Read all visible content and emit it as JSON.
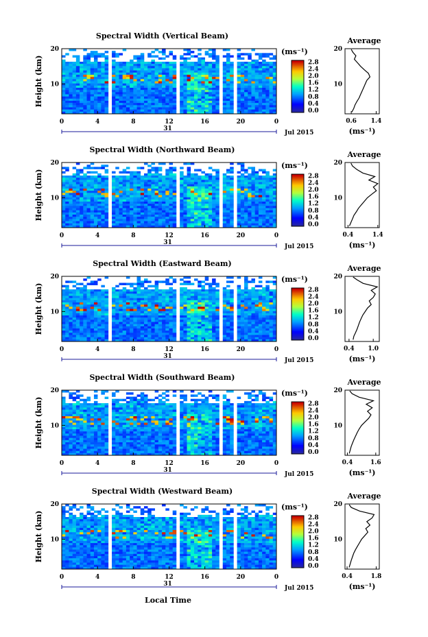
{
  "figure": {
    "date_label": "Jul 2015",
    "day_label": "31",
    "xlabel": "Local Time",
    "ylabel": "Height (km)",
    "unit_label": "(ms⁻¹)",
    "avg_title": "Average",
    "avg_xlabel": "(ms⁻¹)"
  },
  "chart_data": [
    {
      "type": "heatmap",
      "title": "Spectral Width (Vertical Beam)",
      "xlabel": "Local Time",
      "ylabel": "Height (km)",
      "x_ticks": [
        "0",
        "4",
        "8",
        "12",
        "16",
        "20",
        "0"
      ],
      "xlim": [
        0,
        24
      ],
      "y_ticks": [
        "10",
        "20"
      ],
      "ylim": [
        1.5,
        20
      ],
      "colorbar": {
        "ticks": [
          "0.0",
          "0.4",
          "0.8",
          "1.2",
          "1.6",
          "2.0",
          "2.4",
          "2.8"
        ],
        "range": [
          0,
          2.8
        ]
      },
      "data_gaps_hours": [
        [
          5.3,
          5.6
        ],
        [
          12.9,
          13.2
        ],
        [
          17.8,
          18.1
        ],
        [
          19.4,
          19.7
        ]
      ],
      "average_profile": {
        "xlim": [
          0.4,
          1.5
        ],
        "x_ticks": [
          "0.6",
          "1.4"
        ],
        "x_tick_values": [
          0.6,
          1.4
        ],
        "points": [
          [
            0.62,
            2
          ],
          [
            0.68,
            3
          ],
          [
            0.72,
            4
          ],
          [
            0.78,
            5
          ],
          [
            0.85,
            6
          ],
          [
            0.9,
            7
          ],
          [
            0.95,
            8
          ],
          [
            1.0,
            9
          ],
          [
            1.05,
            10
          ],
          [
            1.1,
            11
          ],
          [
            1.2,
            12
          ],
          [
            1.15,
            13
          ],
          [
            1.02,
            14
          ],
          [
            0.9,
            15
          ],
          [
            0.8,
            16
          ],
          [
            0.7,
            17
          ],
          [
            0.75,
            18
          ],
          [
            0.65,
            19
          ],
          [
            0.6,
            19.8
          ]
        ]
      }
    },
    {
      "type": "heatmap",
      "title": "Spectral Width (Northward Beam)",
      "xlabel": "Local Time",
      "ylabel": "Height (km)",
      "x_ticks": [
        "0",
        "4",
        "8",
        "12",
        "16",
        "20",
        "0"
      ],
      "xlim": [
        0,
        24
      ],
      "y_ticks": [
        "10",
        "20"
      ],
      "ylim": [
        1.5,
        20
      ],
      "colorbar": {
        "ticks": [
          "0.0",
          "0.4",
          "0.8",
          "1.2",
          "1.6",
          "2.0",
          "2.4",
          "2.8"
        ],
        "range": [
          0,
          2.8
        ]
      },
      "data_gaps_hours": [
        [
          5.3,
          5.6
        ],
        [
          12.9,
          13.2
        ],
        [
          17.8,
          18.1
        ],
        [
          19.4,
          19.7
        ]
      ],
      "average_profile": {
        "xlim": [
          0.3,
          1.45
        ],
        "x_ticks": [
          "0.4",
          "1.4"
        ],
        "x_tick_values": [
          0.4,
          1.4
        ],
        "points": [
          [
            0.45,
            2
          ],
          [
            0.5,
            3
          ],
          [
            0.55,
            4
          ],
          [
            0.6,
            5
          ],
          [
            0.68,
            6
          ],
          [
            0.75,
            7
          ],
          [
            0.85,
            8
          ],
          [
            0.95,
            9
          ],
          [
            1.05,
            10
          ],
          [
            1.2,
            11
          ],
          [
            1.35,
            12
          ],
          [
            1.25,
            13
          ],
          [
            1.4,
            14
          ],
          [
            1.1,
            15
          ],
          [
            1.3,
            16
          ],
          [
            0.9,
            17
          ],
          [
            0.7,
            18
          ],
          [
            0.55,
            19
          ],
          [
            0.5,
            19.8
          ]
        ]
      }
    },
    {
      "type": "heatmap",
      "title": "Spectral Width (Eastward Beam)",
      "xlabel": "Local Time",
      "ylabel": "Height (km)",
      "x_ticks": [
        "0",
        "4",
        "8",
        "12",
        "16",
        "20",
        "0"
      ],
      "xlim": [
        0,
        24
      ],
      "y_ticks": [
        "10",
        "20"
      ],
      "ylim": [
        1.5,
        20
      ],
      "colorbar": {
        "ticks": [
          "0.0",
          "0.4",
          "0.8",
          "1.2",
          "1.6",
          "2.0",
          "2.4",
          "2.8"
        ],
        "range": [
          0,
          2.8
        ]
      },
      "data_gaps_hours": [
        [
          5.3,
          5.6
        ],
        [
          12.9,
          13.2
        ],
        [
          17.8,
          18.1
        ],
        [
          19.4,
          19.7
        ]
      ],
      "average_profile": {
        "xlim": [
          0.3,
          1.15
        ],
        "x_ticks": [
          "0.4",
          "1.0"
        ],
        "x_tick_values": [
          0.4,
          1.0
        ],
        "points": [
          [
            0.5,
            2
          ],
          [
            0.52,
            3
          ],
          [
            0.56,
            4
          ],
          [
            0.6,
            5
          ],
          [
            0.63,
            6
          ],
          [
            0.66,
            7
          ],
          [
            0.7,
            8
          ],
          [
            0.74,
            9
          ],
          [
            0.8,
            10
          ],
          [
            0.86,
            11
          ],
          [
            0.95,
            12
          ],
          [
            0.9,
            13
          ],
          [
            1.0,
            14
          ],
          [
            1.05,
            15
          ],
          [
            0.95,
            16
          ],
          [
            1.1,
            17
          ],
          [
            0.75,
            18
          ],
          [
            0.6,
            19
          ],
          [
            0.5,
            19.8
          ]
        ]
      }
    },
    {
      "type": "heatmap",
      "title": "Spectral Width (Southward Beam)",
      "xlabel": "Local Time",
      "ylabel": "Height (km)",
      "x_ticks": [
        "0",
        "4",
        "8",
        "12",
        "16",
        "20",
        "0"
      ],
      "xlim": [
        0,
        24
      ],
      "y_ticks": [
        "10",
        "20"
      ],
      "ylim": [
        1.5,
        20
      ],
      "colorbar": {
        "ticks": [
          "0.0",
          "0.4",
          "0.8",
          "1.2",
          "1.6",
          "2.0",
          "2.4",
          "2.8"
        ],
        "range": [
          0,
          2.8
        ]
      },
      "data_gaps_hours": [
        [
          5.3,
          5.6
        ],
        [
          12.9,
          13.2
        ],
        [
          17.8,
          18.1
        ],
        [
          19.4,
          19.7
        ]
      ],
      "average_profile": {
        "xlim": [
          0.3,
          1.75
        ],
        "x_ticks": [
          "0.4",
          "1.6"
        ],
        "x_tick_values": [
          0.4,
          1.6
        ],
        "points": [
          [
            0.48,
            2
          ],
          [
            0.52,
            3
          ],
          [
            0.56,
            4
          ],
          [
            0.62,
            5
          ],
          [
            0.68,
            6
          ],
          [
            0.75,
            7
          ],
          [
            0.82,
            8
          ],
          [
            0.9,
            9
          ],
          [
            1.0,
            10
          ],
          [
            1.15,
            11
          ],
          [
            1.3,
            12
          ],
          [
            1.4,
            13
          ],
          [
            1.25,
            14
          ],
          [
            1.45,
            15
          ],
          [
            1.2,
            16
          ],
          [
            1.5,
            17
          ],
          [
            0.9,
            18
          ],
          [
            0.6,
            19
          ],
          [
            0.5,
            19.8
          ]
        ]
      }
    },
    {
      "type": "heatmap",
      "title": "Spectral Width (Westward Beam)",
      "xlabel": "Local Time",
      "ylabel": "Height (km)",
      "x_ticks": [
        "0",
        "4",
        "8",
        "12",
        "16",
        "20",
        "0"
      ],
      "xlim": [
        0,
        24
      ],
      "y_ticks": [
        "10",
        "20"
      ],
      "ylim": [
        1.5,
        20
      ],
      "colorbar": {
        "ticks": [
          "0.0",
          "0.4",
          "0.8",
          "1.2",
          "1.6",
          "2.0",
          "2.4",
          "2.8"
        ],
        "range": [
          0,
          2.8
        ]
      },
      "data_gaps_hours": [
        [
          5.3,
          5.6
        ],
        [
          12.9,
          13.2
        ],
        [
          17.8,
          18.1
        ],
        [
          19.4,
          19.7
        ]
      ],
      "average_profile": {
        "xlim": [
          0.3,
          1.95
        ],
        "x_ticks": [
          "0.4",
          "1.8"
        ],
        "x_tick_values": [
          0.4,
          1.8
        ],
        "points": [
          [
            0.5,
            2
          ],
          [
            0.55,
            3
          ],
          [
            0.6,
            4
          ],
          [
            0.66,
            5
          ],
          [
            0.72,
            6
          ],
          [
            0.8,
            7
          ],
          [
            0.9,
            8
          ],
          [
            1.0,
            9
          ],
          [
            1.1,
            10
          ],
          [
            1.25,
            11
          ],
          [
            1.4,
            12
          ],
          [
            1.3,
            13
          ],
          [
            1.5,
            14
          ],
          [
            1.35,
            15
          ],
          [
            1.6,
            16
          ],
          [
            1.7,
            17
          ],
          [
            1.0,
            18
          ],
          [
            0.6,
            19
          ],
          [
            0.5,
            19.8
          ]
        ]
      }
    }
  ]
}
